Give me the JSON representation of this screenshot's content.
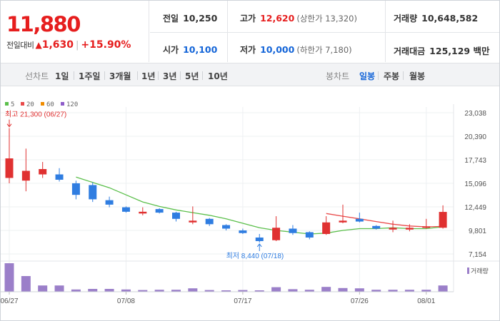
{
  "summary": {
    "price": "11,880",
    "change_label": "전일대비",
    "change_arrow": "▲",
    "change_amount": "1,630",
    "change_percent": "+15.90%",
    "prev_label": "전일",
    "prev_value": "10,250",
    "high_label": "고가",
    "high_value": "12,620",
    "upper_limit": "(상한가 13,320)",
    "volume_label": "거래량",
    "volume_value": "10,648,582",
    "open_label": "시가",
    "open_value": "10,100",
    "low_label": "저가",
    "low_value": "10,000",
    "lower_limit": "(하한가 7,180)",
    "amount_label": "거래대금",
    "amount_value": "125,129 백만"
  },
  "tabs": {
    "line_title": "선차트",
    "line_items": [
      "1일",
      "1주일",
      "3개월",
      "1년",
      "3년",
      "5년",
      "10년"
    ],
    "candle_title": "봉차트",
    "candle_items": [
      "일봉",
      "주봉",
      "월봉"
    ],
    "candle_active": 0
  },
  "colors": {
    "up": "#e03131",
    "down": "#2f7de1",
    "ma5": "#5bbf4b",
    "ma20": "#e94a4a",
    "ma60": "#f08c00",
    "ma120": "#8e5cc9",
    "volume": "#9b7fc9",
    "price_red": "#e61e1e",
    "price_blue": "#1465d8"
  },
  "chart_data": {
    "type": "candlestick",
    "legend": [
      {
        "name": "5",
        "color": "#5bbf4b"
      },
      {
        "name": "20",
        "color": "#e94a4a"
      },
      {
        "name": "60",
        "color": "#f08c00"
      },
      {
        "name": "120",
        "color": "#8e5cc9"
      }
    ],
    "y_ticks": [
      "23,038",
      "20,390",
      "17,743",
      "15,096",
      "12,449",
      "9,801",
      "7,154"
    ],
    "y_tick_values": [
      23038,
      20390,
      17743,
      15096,
      12449,
      9801,
      7154
    ],
    "ylim": [
      7154,
      23038
    ],
    "x_ticks": [
      {
        "label": "06/27",
        "index": 0
      },
      {
        "label": "07/08",
        "index": 7
      },
      {
        "label": "07/17",
        "index": 14
      },
      {
        "label": "07/26",
        "index": 21
      },
      {
        "label": "08/01",
        "index": 25
      }
    ],
    "candles": [
      {
        "o": 15700,
        "h": 21300,
        "l": 15100,
        "c": 17900
      },
      {
        "o": 15400,
        "h": 19000,
        "l": 14200,
        "c": 16500
      },
      {
        "o": 16100,
        "h": 17500,
        "l": 15700,
        "c": 16700
      },
      {
        "o": 16100,
        "h": 16800,
        "l": 15300,
        "c": 15500
      },
      {
        "o": 15100,
        "h": 15400,
        "l": 13300,
        "c": 13800
      },
      {
        "o": 14900,
        "h": 15200,
        "l": 13000,
        "c": 13300
      },
      {
        "o": 13200,
        "h": 13600,
        "l": 12400,
        "c": 12700
      },
      {
        "o": 12400,
        "h": 12500,
        "l": 11800,
        "c": 11900
      },
      {
        "o": 11700,
        "h": 12400,
        "l": 11500,
        "c": 11900
      },
      {
        "o": 12200,
        "h": 12300,
        "l": 11700,
        "c": 11800
      },
      {
        "o": 11800,
        "h": 11900,
        "l": 10800,
        "c": 11100
      },
      {
        "o": 10700,
        "h": 12500,
        "l": 10500,
        "c": 10900
      },
      {
        "o": 11100,
        "h": 11200,
        "l": 10300,
        "c": 10500
      },
      {
        "o": 10400,
        "h": 10500,
        "l": 9800,
        "c": 10000
      },
      {
        "o": 9800,
        "h": 10000,
        "l": 9400,
        "c": 9500
      },
      {
        "o": 9000,
        "h": 9400,
        "l": 8440,
        "c": 8600
      },
      {
        "o": 8700,
        "h": 11400,
        "l": 8600,
        "c": 10100
      },
      {
        "o": 10000,
        "h": 10400,
        "l": 9300,
        "c": 9500
      },
      {
        "o": 9600,
        "h": 9700,
        "l": 8800,
        "c": 9000
      },
      {
        "o": 9400,
        "h": 11400,
        "l": 9300,
        "c": 10700
      },
      {
        "o": 10700,
        "h": 12700,
        "l": 10600,
        "c": 10900
      },
      {
        "o": 11100,
        "h": 11800,
        "l": 10700,
        "c": 10800
      },
      {
        "o": 10300,
        "h": 10400,
        "l": 9900,
        "c": 10000
      },
      {
        "o": 9900,
        "h": 10900,
        "l": 9600,
        "c": 10100
      },
      {
        "o": 9900,
        "h": 10500,
        "l": 9700,
        "c": 10100
      },
      {
        "o": 10100,
        "h": 11100,
        "l": 10000,
        "c": 10250
      },
      {
        "o": 10100,
        "h": 12620,
        "l": 10000,
        "c": 11880
      }
    ],
    "ma5": [
      {
        "i": 4,
        "v": 15800
      },
      {
        "i": 5,
        "v": 15200
      },
      {
        "i": 6,
        "v": 14600
      },
      {
        "i": 7,
        "v": 13800
      },
      {
        "i": 8,
        "v": 13000
      },
      {
        "i": 9,
        "v": 12500
      },
      {
        "i": 10,
        "v": 12100
      },
      {
        "i": 11,
        "v": 11800
      },
      {
        "i": 12,
        "v": 11500
      },
      {
        "i": 13,
        "v": 11100
      },
      {
        "i": 14,
        "v": 10600
      },
      {
        "i": 15,
        "v": 10100
      },
      {
        "i": 16,
        "v": 9800
      },
      {
        "i": 17,
        "v": 9600
      },
      {
        "i": 18,
        "v": 9400
      },
      {
        "i": 19,
        "v": 9500
      },
      {
        "i": 20,
        "v": 9800
      },
      {
        "i": 21,
        "v": 10000
      },
      {
        "i": 22,
        "v": 10000
      },
      {
        "i": 23,
        "v": 10100
      },
      {
        "i": 24,
        "v": 10000
      },
      {
        "i": 25,
        "v": 10000
      },
      {
        "i": 26,
        "v": 10200
      }
    ],
    "ma20": [
      {
        "i": 19,
        "v": 11700
      },
      {
        "i": 20,
        "v": 11400
      },
      {
        "i": 21,
        "v": 11100
      },
      {
        "i": 22,
        "v": 10800
      },
      {
        "i": 23,
        "v": 10500
      },
      {
        "i": 24,
        "v": 10300
      },
      {
        "i": 25,
        "v": 10200
      },
      {
        "i": 26,
        "v": 10250
      }
    ],
    "volume": [
      {
        "v": 1.0
      },
      {
        "v": 0.55
      },
      {
        "v": 0.22
      },
      {
        "v": 0.22
      },
      {
        "v": 0.08
      },
      {
        "v": 0.1
      },
      {
        "v": 0.1
      },
      {
        "v": 0.08
      },
      {
        "v": 0.06
      },
      {
        "v": 0.07
      },
      {
        "v": 0.07
      },
      {
        "v": 0.12
      },
      {
        "v": 0.06
      },
      {
        "v": 0.05
      },
      {
        "v": 0.06
      },
      {
        "v": 0.05
      },
      {
        "v": 0.16
      },
      {
        "v": 0.09
      },
      {
        "v": 0.07
      },
      {
        "v": 0.17
      },
      {
        "v": 0.13
      },
      {
        "v": 0.12
      },
      {
        "v": 0.07
      },
      {
        "v": 0.07
      },
      {
        "v": 0.07
      },
      {
        "v": 0.07
      },
      {
        "v": 0.22
      }
    ],
    "volume_legend": "거래량",
    "annotations": {
      "high_text": "최고 21,300 (06/27)",
      "high_index": 0,
      "high_value": 21300,
      "low_text": "최저 8,440 (07/18)",
      "low_index": 15,
      "low_value": 8440
    }
  }
}
